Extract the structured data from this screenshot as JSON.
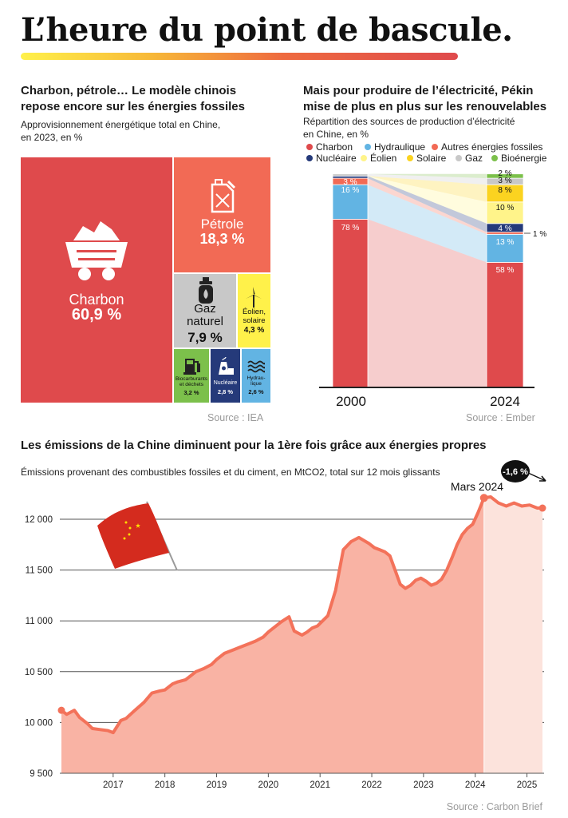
{
  "title": "L’heure du point de bascule.",
  "colors": {
    "coal": "#df4a4c",
    "oil": "#f26a55",
    "gas": "#c8c8c8",
    "wind_solar": "#fff14a",
    "biofuel": "#7cc04b",
    "nuclear": "#253a7a",
    "hydro": "#62b4e3",
    "emissions_line": "#f3725a",
    "emissions_fill": "#f9b3a4",
    "emissions_fill_light": "#fce3dc"
  },
  "treemap": {
    "title": "Charbon, pétrole… Le modèle chinois repose encore sur les énergies fossiles",
    "subtitle_line1": "Approvisionnement énergétique total en Chine,",
    "subtitle_line2": "en 2023, en %",
    "source": "Source : IEA",
    "items": {
      "coal": {
        "name": "Charbon",
        "value": "60,9 %",
        "icon": "coal-cart-icon"
      },
      "oil": {
        "name": "Pétrole",
        "value": "18,3 %",
        "icon": "jerrycan-icon"
      },
      "gas": {
        "name_line1": "Gaz",
        "name_line2": "naturel",
        "value": "7,9 %",
        "icon": "gas-bottle-icon"
      },
      "wind_solar": {
        "name_line1": "Éolien,",
        "name_line2": "solaire",
        "value": "4,3 %",
        "icon": "wind-turbine-icon"
      },
      "biofuel": {
        "name_line1": "Biocarburants",
        "name_line2": "et déchets",
        "value": "3,2 %",
        "icon": "fuel-pump-icon"
      },
      "nuclear": {
        "name": "Nucléaire",
        "value": "2,8 %",
        "icon": "nuclear-plant-icon"
      },
      "hydro": {
        "name_line1": "Hydrau-",
        "name_line2": "lique",
        "value": "2,6 %",
        "icon": "water-waves-icon"
      }
    }
  },
  "electricity": {
    "title": "Mais pour produire de l’électricité, Pékin mise de plus en plus sur les renouvelables",
    "subtitle_line1": "Répartition des sources de production d’électricité",
    "subtitle_line2": "en Chine, en %",
    "source": "Source : Ember",
    "legend": [
      "Charbon",
      "Hydraulique",
      "Autres énergies fossiles",
      "Nucléaire",
      "Éolien",
      "Solaire",
      "Gaz",
      "Bioénergie"
    ],
    "year_2000": "2000",
    "year_2024": "2024",
    "labels_2000": {
      "coal": "78 %",
      "hydro": "16 %",
      "other_fossil": "3 %"
    },
    "labels_2024": {
      "coal": "58 %",
      "hydro": "13 %",
      "nuclear": "4 %",
      "solar": "8 %",
      "wind": "10 %",
      "gas": "3 %",
      "bio": "2 %",
      "other_fossil": "1 %"
    }
  },
  "emissions": {
    "title": "Les émissions de la Chine diminuent pour la 1ère fois grâce aux énergies propres",
    "subtitle": "Émissions provenant des combustibles fossiles et du ciment, en MtCO2, total sur 12 mois glissants",
    "annotation": "Mars 2024",
    "change_badge": "-1,6 %",
    "source": "Source : Carbon Brief",
    "flag_icon": "china-flag-icon",
    "y_tick_labels": [
      "12 000",
      "11 500",
      "11 000",
      "10 500",
      "10 000",
      "9 500"
    ],
    "x_tick_labels": [
      "2017",
      "2018",
      "2019",
      "2020",
      "2021",
      "2022",
      "2023",
      "2024",
      "2025"
    ]
  },
  "chart_data": [
    {
      "type": "treemap",
      "title": "Charbon, pétrole… Le modèle chinois repose encore sur les énergies fossiles",
      "unit": "%",
      "categories": [
        "Charbon",
        "Pétrole",
        "Gaz naturel",
        "Éolien, solaire",
        "Biocarburants et déchets",
        "Nucléaire",
        "Hydraulique"
      ],
      "values": [
        60.9,
        18.3,
        7.9,
        4.3,
        3.2,
        2.8,
        2.6
      ],
      "year": "2023"
    },
    {
      "type": "bar",
      "stacked": true,
      "title": "Mais pour produire de l’électricité, Pékin mise de plus en plus sur les renouvelables",
      "unit": "%",
      "categories": [
        "2000",
        "2024"
      ],
      "series": [
        {
          "name": "Charbon",
          "values": [
            78,
            58
          ]
        },
        {
          "name": "Hydraulique",
          "values": [
            16,
            13
          ]
        },
        {
          "name": "Autres énergies fossiles",
          "values": [
            3,
            1
          ]
        },
        {
          "name": "Nucléaire",
          "values": [
            1,
            4
          ]
        },
        {
          "name": "Éolien",
          "values": [
            0,
            10
          ]
        },
        {
          "name": "Solaire",
          "values": [
            0,
            8
          ]
        },
        {
          "name": "Gaz",
          "values": [
            1,
            3
          ]
        },
        {
          "name": "Bioénergie",
          "values": [
            0,
            2
          ]
        }
      ],
      "ylim": [
        0,
        100
      ]
    },
    {
      "type": "area",
      "title": "Les émissions de la Chine diminuent pour la 1ère fois grâce aux énergies propres",
      "ylabel": "MtCO2",
      "ylim": [
        9500,
        12200
      ],
      "xlim": [
        2016.0,
        2025.3
      ],
      "y_ticks": [
        9500,
        10000,
        10500,
        11000,
        11500,
        12000
      ],
      "x_ticks": [
        2017,
        2018,
        2019,
        2020,
        2021,
        2022,
        2023,
        2024,
        2025
      ],
      "grid": true,
      "annotation": {
        "label": "Mars 2024",
        "x": 2024.17,
        "y": 12210
      },
      "x": [
        2016.0,
        2016.1,
        2016.25,
        2016.35,
        2016.5,
        2016.6,
        2016.75,
        2016.9,
        2017.0,
        2017.15,
        2017.25,
        2017.4,
        2017.6,
        2017.75,
        2017.9,
        2018.0,
        2018.15,
        2018.25,
        2018.4,
        2018.5,
        2018.6,
        2018.75,
        2018.9,
        2019.0,
        2019.15,
        2019.3,
        2019.45,
        2019.6,
        2019.75,
        2019.9,
        2020.0,
        2020.1,
        2020.25,
        2020.4,
        2020.5,
        2020.65,
        2020.75,
        2020.85,
        2020.95,
        2021.05,
        2021.15,
        2021.3,
        2021.45,
        2021.6,
        2021.75,
        2021.85,
        2021.95,
        2022.05,
        2022.15,
        2022.25,
        2022.35,
        2022.45,
        2022.55,
        2022.65,
        2022.75,
        2022.85,
        2022.95,
        2023.05,
        2023.15,
        2023.25,
        2023.35,
        2023.45,
        2023.55,
        2023.65,
        2023.75,
        2023.85,
        2023.95,
        2024.05,
        2024.17,
        2024.3,
        2024.45,
        2024.6,
        2024.75,
        2024.9,
        2025.05,
        2025.2,
        2025.3
      ],
      "y": [
        10120,
        10080,
        10120,
        10050,
        9990,
        9940,
        9930,
        9920,
        9900,
        10020,
        10040,
        10110,
        10200,
        10290,
        10310,
        10320,
        10380,
        10400,
        10420,
        10460,
        10500,
        10530,
        10570,
        10620,
        10680,
        10710,
        10740,
        10770,
        10800,
        10840,
        10890,
        10930,
        10990,
        11040,
        10900,
        10860,
        10890,
        10930,
        10950,
        11000,
        11050,
        11300,
        11700,
        11780,
        11820,
        11790,
        11760,
        11720,
        11700,
        11680,
        11640,
        11500,
        11360,
        11320,
        11350,
        11400,
        11420,
        11390,
        11350,
        11370,
        11410,
        11500,
        11620,
        11750,
        11850,
        11910,
        11950,
        12060,
        12210,
        12220,
        12160,
        12130,
        12160,
        12130,
        12140,
        12110,
        12110
      ]
    }
  ]
}
